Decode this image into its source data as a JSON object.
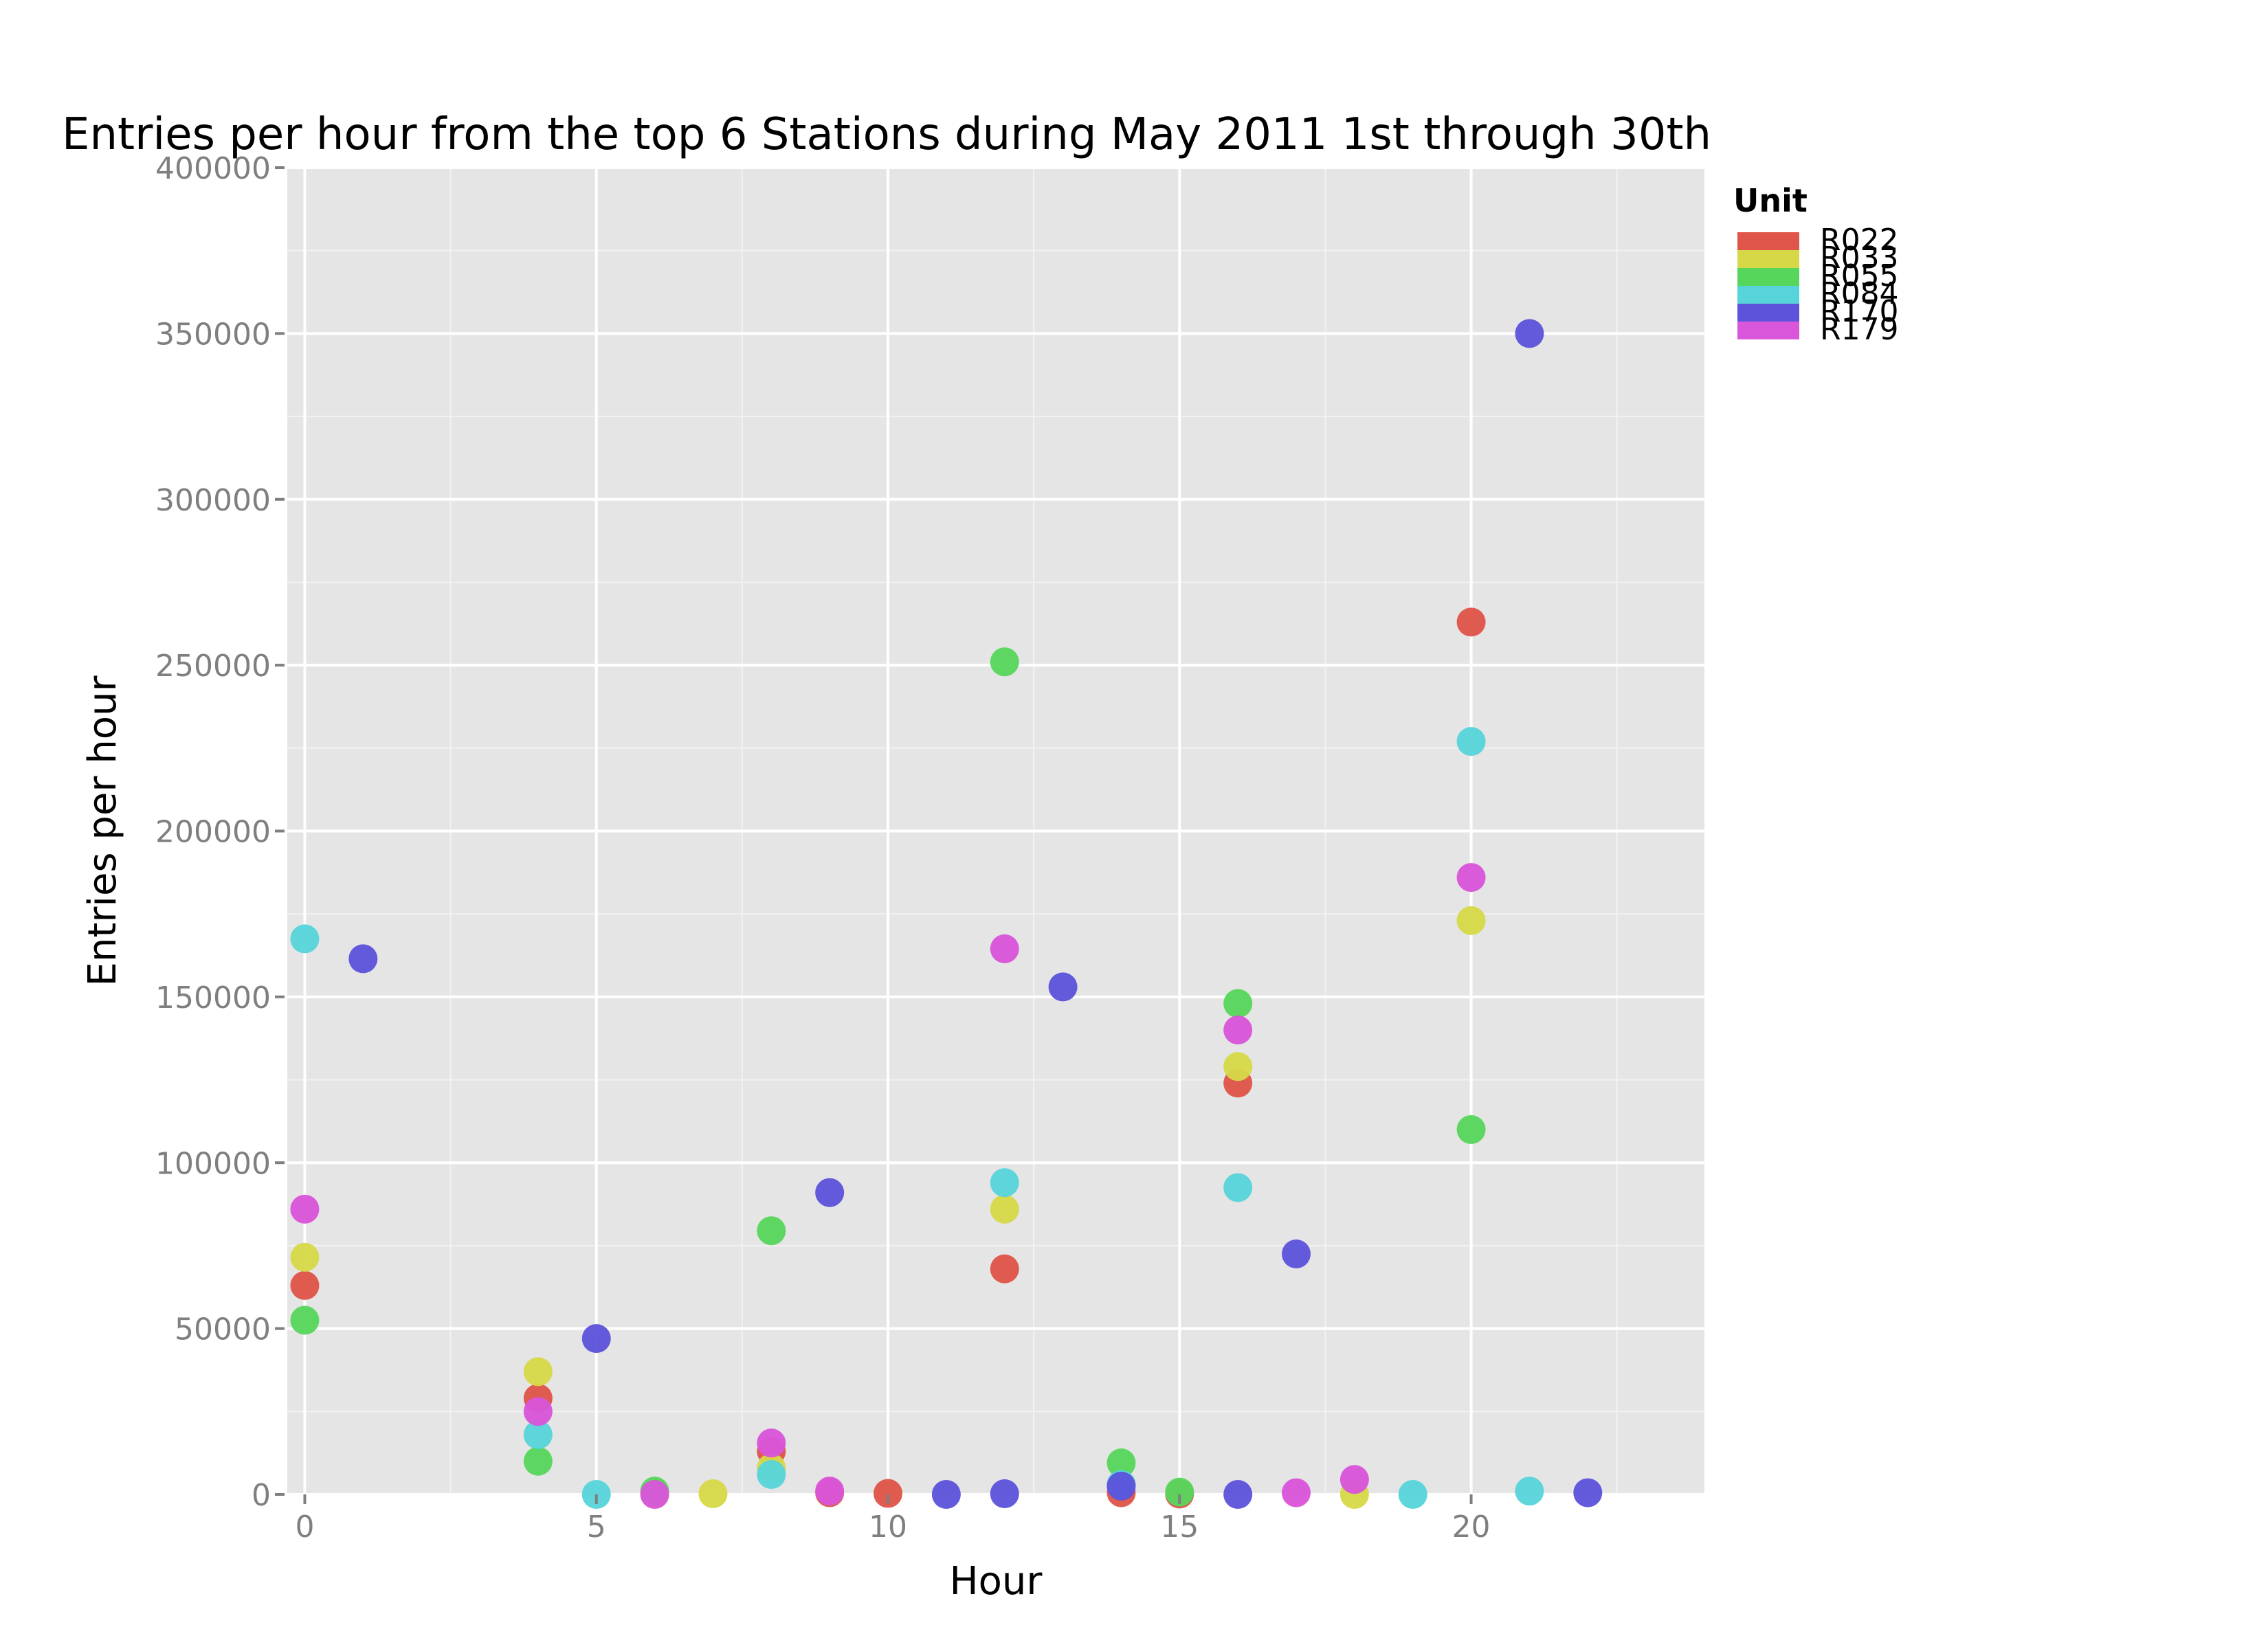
{
  "chart_data": {
    "type": "scatter",
    "title": "Entries per hour from the top 6 Stations during May 2011 1st through 30th",
    "xlabel": "Hour",
    "ylabel": "Entries per hour",
    "xlim": [
      -0.3,
      24
    ],
    "ylim": [
      0,
      400000
    ],
    "xticks": [
      0,
      5,
      10,
      15,
      20
    ],
    "yticks": [
      0,
      50000,
      100000,
      150000,
      200000,
      250000,
      300000,
      350000,
      400000
    ],
    "grid": true,
    "legend_title": "Unit",
    "legend_position": "right",
    "series": [
      {
        "name": "R022",
        "color": "#df5549",
        "points": [
          [
            0,
            63000
          ],
          [
            4,
            29000
          ],
          [
            8,
            13000
          ],
          [
            9,
            500
          ],
          [
            10,
            300
          ],
          [
            12,
            68000
          ],
          [
            14,
            500
          ],
          [
            15,
            100
          ],
          [
            16,
            124000
          ],
          [
            20,
            263000
          ]
        ]
      },
      {
        "name": "R033",
        "color": "#d6d848",
        "points": [
          [
            0,
            71500
          ],
          [
            4,
            37000
          ],
          [
            6,
            300
          ],
          [
            7,
            200
          ],
          [
            8,
            8000
          ],
          [
            12,
            86000
          ],
          [
            16,
            129000
          ],
          [
            18,
            0
          ],
          [
            20,
            173000
          ]
        ]
      },
      {
        "name": "R055",
        "color": "#57d65c",
        "points": [
          [
            0,
            52500
          ],
          [
            4,
            10000
          ],
          [
            6,
            1000
          ],
          [
            8,
            79500
          ],
          [
            12,
            251000
          ],
          [
            14,
            9500
          ],
          [
            15,
            700
          ],
          [
            16,
            148000
          ],
          [
            20,
            110000
          ]
        ]
      },
      {
        "name": "R084",
        "color": "#57d4da",
        "points": [
          [
            0,
            167500
          ],
          [
            4,
            18000
          ],
          [
            5,
            0
          ],
          [
            8,
            6000
          ],
          [
            12,
            94000
          ],
          [
            14,
            3000
          ],
          [
            16,
            92500
          ],
          [
            19,
            0
          ],
          [
            20,
            227000
          ],
          [
            21,
            1000
          ]
        ]
      },
      {
        "name": "R170",
        "color": "#5d53db",
        "points": [
          [
            1,
            161500
          ],
          [
            5,
            47000
          ],
          [
            9,
            91000
          ],
          [
            11,
            0
          ],
          [
            12,
            200
          ],
          [
            13,
            153000
          ],
          [
            14,
            2500
          ],
          [
            16,
            0
          ],
          [
            17,
            72500
          ],
          [
            21,
            350000
          ],
          [
            22,
            500
          ]
        ]
      },
      {
        "name": "R179",
        "color": "#d955d9",
        "points": [
          [
            0,
            86000
          ],
          [
            4,
            25000
          ],
          [
            6,
            0
          ],
          [
            8,
            15500
          ],
          [
            9,
            1000
          ],
          [
            12,
            164500
          ],
          [
            16,
            140000
          ],
          [
            17,
            500
          ],
          [
            18,
            4500
          ],
          [
            20,
            186000
          ]
        ]
      }
    ]
  }
}
